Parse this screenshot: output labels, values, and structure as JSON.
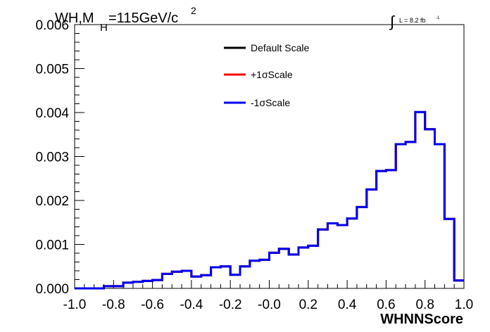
{
  "chart_data": {
    "type": "line",
    "title_main": "WH,M",
    "title_sub": "H",
    "title_rest": "=115GeV/c",
    "title_sup": "2",
    "lumi_integral": "∫",
    "lumi_text": "L = 8.2 fb",
    "lumi_sup": "-1",
    "xlabel": "WHNNScore",
    "ylabel": "",
    "xlim": [
      -1.0,
      1.0
    ],
    "ylim": [
      0.0,
      0.006
    ],
    "x_ticks": [
      "-1.0",
      "-0.8",
      "-0.6",
      "-0.4",
      "-0.2",
      "-0.0",
      "0.2",
      "0.4",
      "0.6",
      "0.8",
      "1.0"
    ],
    "x_tick_values": [
      -1.0,
      -0.8,
      -0.6,
      -0.4,
      -0.2,
      0.0,
      0.2,
      0.4,
      0.6,
      0.8,
      1.0
    ],
    "y_ticks": [
      "0.000",
      "0.001",
      "0.002",
      "0.003",
      "0.004",
      "0.005",
      "0.006"
    ],
    "y_tick_values": [
      0.0,
      0.001,
      0.002,
      0.003,
      0.004,
      0.005,
      0.006
    ],
    "grid": false,
    "legend_placement": "top-center",
    "bin_edges_start": -1.0,
    "bin_width": 0.05,
    "series": [
      {
        "name": "Default Scale",
        "color": "#000000",
        "values": [
          0.0,
          0.0,
          0.0,
          5e-05,
          5e-05,
          0.00013,
          0.00015,
          0.00017,
          0.00019,
          0.00033,
          0.00038,
          0.0004,
          0.00027,
          0.0003,
          0.00048,
          0.0005,
          0.00031,
          0.0005,
          0.00063,
          0.00065,
          0.00081,
          0.0009,
          0.00077,
          0.00093,
          0.00097,
          0.00134,
          0.00148,
          0.00144,
          0.00159,
          0.00185,
          0.00225,
          0.00267,
          0.00269,
          0.00328,
          0.00333,
          0.00401,
          0.00362,
          0.00328,
          0.00158,
          0.00018
        ]
      },
      {
        "name": "+1σScale",
        "color": "#ff0000",
        "values": [
          0.0,
          0.0,
          0.0,
          5e-05,
          5e-05,
          0.00013,
          0.00015,
          0.00017,
          0.00019,
          0.00033,
          0.00038,
          0.0004,
          0.00027,
          0.0003,
          0.00048,
          0.0005,
          0.00031,
          0.0005,
          0.00063,
          0.00065,
          0.00081,
          0.0009,
          0.00077,
          0.00093,
          0.00097,
          0.00134,
          0.00148,
          0.00144,
          0.00159,
          0.00185,
          0.00225,
          0.00267,
          0.00269,
          0.00328,
          0.00333,
          0.00401,
          0.00362,
          0.00328,
          0.00158,
          0.00018
        ]
      },
      {
        "name": "-1σScale",
        "color": "#0000ee",
        "values": [
          0.0,
          0.0,
          0.0,
          5e-05,
          5e-05,
          0.00013,
          0.00015,
          0.00017,
          0.00019,
          0.00033,
          0.00038,
          0.0004,
          0.00027,
          0.0003,
          0.00048,
          0.0005,
          0.00031,
          0.0005,
          0.00063,
          0.00065,
          0.00081,
          0.0009,
          0.00077,
          0.00093,
          0.00097,
          0.00134,
          0.00148,
          0.00144,
          0.00159,
          0.00185,
          0.00225,
          0.00267,
          0.00269,
          0.00328,
          0.00333,
          0.00401,
          0.00362,
          0.00328,
          0.00158,
          0.00018
        ]
      }
    ]
  }
}
